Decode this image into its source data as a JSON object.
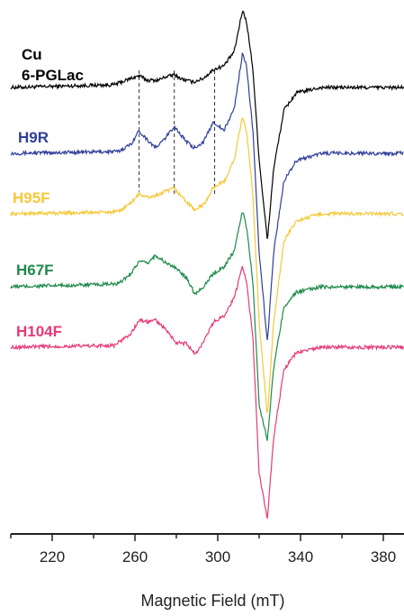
{
  "chart_data": {
    "type": "line",
    "xlabel": "Magnetic Field (mT)",
    "ylabel": "",
    "xlim": [
      200,
      390
    ],
    "x_ticks": [
      "220",
      "260",
      "300",
      "340",
      "380"
    ],
    "grid": false,
    "reference_lines_x": [
      262,
      279,
      298.5
    ],
    "series": [
      {
        "name": "Cu\n6-PGLac",
        "color": "#000000",
        "points": [
          [
            200,
            0
          ],
          [
            250,
            3
          ],
          [
            258,
            10
          ],
          [
            262,
            13
          ],
          [
            266,
            8
          ],
          [
            271,
            8
          ],
          [
            275,
            12
          ],
          [
            279,
            14
          ],
          [
            283,
            9
          ],
          [
            288,
            6
          ],
          [
            293,
            10
          ],
          [
            298,
            20
          ],
          [
            303,
            24
          ],
          [
            308,
            40
          ],
          [
            312,
            86
          ],
          [
            314,
            72
          ],
          [
            317,
            20
          ],
          [
            320,
            -80
          ],
          [
            324,
            -170
          ],
          [
            327,
            -90
          ],
          [
            332,
            -25
          ],
          [
            338,
            -6
          ],
          [
            350,
            0
          ],
          [
            390,
            0
          ]
        ]
      },
      {
        "name": "H9R",
        "color": "#2f3f9a",
        "points": [
          [
            200,
            0
          ],
          [
            252,
            2
          ],
          [
            258,
            10
          ],
          [
            262,
            25
          ],
          [
            266,
            15
          ],
          [
            270,
            6
          ],
          [
            274,
            15
          ],
          [
            279,
            30
          ],
          [
            283,
            18
          ],
          [
            288,
            6
          ],
          [
            293,
            12
          ],
          [
            298,
            35
          ],
          [
            303,
            25
          ],
          [
            308,
            50
          ],
          [
            312,
            112
          ],
          [
            314,
            95
          ],
          [
            317,
            25
          ],
          [
            320,
            -110
          ],
          [
            324,
            -210
          ],
          [
            327,
            -110
          ],
          [
            332,
            -30
          ],
          [
            338,
            -8
          ],
          [
            350,
            0
          ],
          [
            390,
            0
          ]
        ]
      },
      {
        "name": "H95F",
        "color": "#f5c93a",
        "points": [
          [
            200,
            0
          ],
          [
            252,
            2
          ],
          [
            258,
            12
          ],
          [
            262,
            22
          ],
          [
            266,
            18
          ],
          [
            270,
            20
          ],
          [
            274,
            24
          ],
          [
            279,
            28
          ],
          [
            283,
            18
          ],
          [
            289,
            4
          ],
          [
            294,
            12
          ],
          [
            298,
            30
          ],
          [
            303,
            35
          ],
          [
            308,
            60
          ],
          [
            312,
            108
          ],
          [
            314,
            90
          ],
          [
            317,
            20
          ],
          [
            320,
            -120
          ],
          [
            324,
            -225
          ],
          [
            327,
            -120
          ],
          [
            332,
            -30
          ],
          [
            338,
            -8
          ],
          [
            350,
            0
          ],
          [
            390,
            0
          ]
        ]
      },
      {
        "name": "H67F",
        "color": "#1e8a4a",
        "points": [
          [
            200,
            0
          ],
          [
            252,
            3
          ],
          [
            258,
            15
          ],
          [
            262,
            28
          ],
          [
            266,
            26
          ],
          [
            270,
            35
          ],
          [
            274,
            28
          ],
          [
            280,
            20
          ],
          [
            285,
            10
          ],
          [
            289,
            -8
          ],
          [
            293,
            0
          ],
          [
            298,
            15
          ],
          [
            303,
            22
          ],
          [
            308,
            40
          ],
          [
            312,
            85
          ],
          [
            314,
            65
          ],
          [
            317,
            5
          ],
          [
            320,
            -130
          ],
          [
            324,
            -170
          ],
          [
            327,
            -90
          ],
          [
            332,
            -22
          ],
          [
            338,
            -6
          ],
          [
            350,
            0
          ],
          [
            390,
            0
          ]
        ]
      },
      {
        "name": "H104F",
        "color": "#e53a78",
        "points": [
          [
            200,
            0
          ],
          [
            250,
            2
          ],
          [
            258,
            15
          ],
          [
            262,
            30
          ],
          [
            266,
            28
          ],
          [
            270,
            30
          ],
          [
            274,
            22
          ],
          [
            280,
            5
          ],
          [
            285,
            4
          ],
          [
            289,
            -8
          ],
          [
            293,
            5
          ],
          [
            298,
            28
          ],
          [
            303,
            35
          ],
          [
            308,
            55
          ],
          [
            312,
            90
          ],
          [
            314,
            70
          ],
          [
            317,
            10
          ],
          [
            320,
            -140
          ],
          [
            324,
            -190
          ],
          [
            327,
            -100
          ],
          [
            332,
            -25
          ],
          [
            338,
            -6
          ],
          [
            350,
            0
          ],
          [
            390,
            0
          ]
        ]
      }
    ]
  }
}
